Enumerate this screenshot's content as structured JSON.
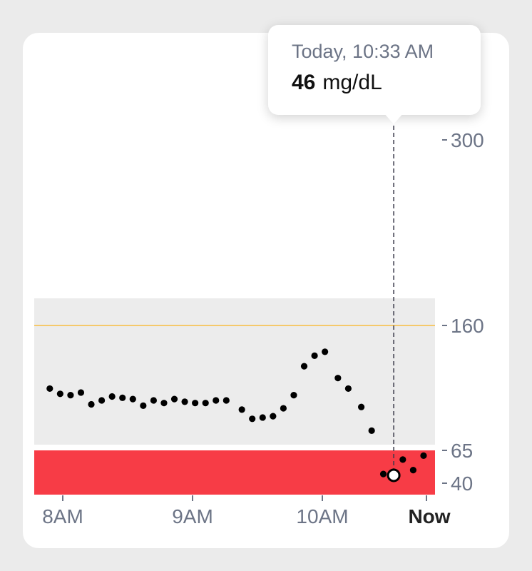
{
  "tooltip": {
    "time": "Today, 10:33 AM",
    "value": "46",
    "unit": "mg/dL"
  },
  "colors": {
    "target_band": "#ececec",
    "low_band": "#f73c46",
    "high_line": "#f5c96b",
    "point": "#000000",
    "axis_text": "#6c7486"
  },
  "chart_data": {
    "type": "scatter",
    "title": "",
    "xlabel": "",
    "ylabel": "",
    "unit": "mg/dL",
    "x_ticks": [
      {
        "t": 8.0,
        "label": "8AM"
      },
      {
        "t": 9.0,
        "label": "9AM"
      },
      {
        "t": 10.0,
        "label": "10AM"
      },
      {
        "t": 10.8,
        "label": "Now"
      }
    ],
    "y_ticks": [
      300,
      160,
      65,
      40
    ],
    "target_range": [
      65,
      160
    ],
    "low_threshold": 65,
    "high_line": 160,
    "selected": {
      "t": 10.55,
      "value": 46
    },
    "points": [
      {
        "t": 7.9,
        "v": 112
      },
      {
        "t": 7.98,
        "v": 108
      },
      {
        "t": 8.06,
        "v": 107
      },
      {
        "t": 8.14,
        "v": 109
      },
      {
        "t": 8.22,
        "v": 100
      },
      {
        "t": 8.3,
        "v": 103
      },
      {
        "t": 8.38,
        "v": 106
      },
      {
        "t": 8.46,
        "v": 105
      },
      {
        "t": 8.54,
        "v": 104
      },
      {
        "t": 8.62,
        "v": 99
      },
      {
        "t": 8.7,
        "v": 103
      },
      {
        "t": 8.78,
        "v": 101
      },
      {
        "t": 8.86,
        "v": 104
      },
      {
        "t": 8.94,
        "v": 102
      },
      {
        "t": 9.02,
        "v": 101
      },
      {
        "t": 9.1,
        "v": 101
      },
      {
        "t": 9.18,
        "v": 103
      },
      {
        "t": 9.26,
        "v": 103
      },
      {
        "t": 9.38,
        "v": 96
      },
      {
        "t": 9.46,
        "v": 89
      },
      {
        "t": 9.54,
        "v": 90
      },
      {
        "t": 9.62,
        "v": 91
      },
      {
        "t": 9.7,
        "v": 97
      },
      {
        "t": 9.78,
        "v": 107
      },
      {
        "t": 9.86,
        "v": 129
      },
      {
        "t": 9.94,
        "v": 137
      },
      {
        "t": 10.02,
        "v": 140
      },
      {
        "t": 10.12,
        "v": 120
      },
      {
        "t": 10.2,
        "v": 112
      },
      {
        "t": 10.3,
        "v": 98
      },
      {
        "t": 10.38,
        "v": 80
      },
      {
        "t": 10.47,
        "v": 47
      },
      {
        "t": 10.55,
        "v": 46
      },
      {
        "t": 10.62,
        "v": 58
      },
      {
        "t": 10.7,
        "v": 50
      },
      {
        "t": 10.78,
        "v": 61
      }
    ]
  }
}
